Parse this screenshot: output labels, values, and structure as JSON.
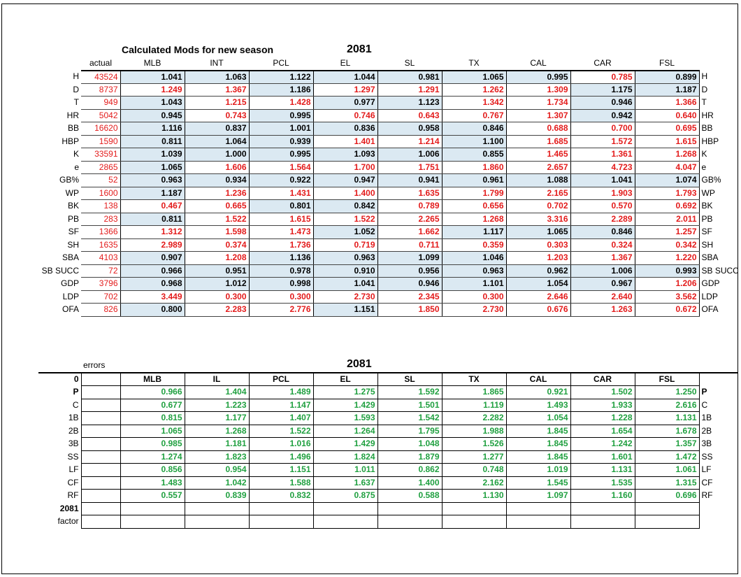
{
  "top": {
    "title": "Calculated Mods for new season",
    "year": "2081",
    "actual_label": "actual",
    "columns": [
      "MLB",
      "INT",
      "PCL",
      "EL",
      "SL",
      "TX",
      "CAL",
      "CAR",
      "FSL"
    ],
    "rows": [
      {
        "label": "H",
        "actual": "43524",
        "values": [
          "1.041",
          "1.063",
          "1.122",
          "1.044",
          "0.981",
          "1.065",
          "0.995",
          "0.785",
          "0.899"
        ],
        "colors": [
          "k",
          "k",
          "k",
          "k",
          "k",
          "k",
          "k",
          "r",
          "k"
        ]
      },
      {
        "label": "D",
        "actual": "8737",
        "values": [
          "1.249",
          "1.367",
          "1.186",
          "1.297",
          "1.291",
          "1.262",
          "1.309",
          "1.175",
          "1.187"
        ],
        "colors": [
          "r",
          "r",
          "k",
          "r",
          "r",
          "r",
          "r",
          "k",
          "k"
        ]
      },
      {
        "label": "T",
        "actual": "949",
        "values": [
          "1.043",
          "1.215",
          "1.428",
          "0.977",
          "1.123",
          "1.342",
          "1.734",
          "0.946",
          "1.366"
        ],
        "colors": [
          "k",
          "r",
          "r",
          "k",
          "k",
          "r",
          "r",
          "k",
          "r"
        ]
      },
      {
        "label": "HR",
        "actual": "5042",
        "values": [
          "0.945",
          "0.743",
          "0.995",
          "0.746",
          "0.643",
          "0.767",
          "1.307",
          "0.942",
          "0.640"
        ],
        "colors": [
          "k",
          "r",
          "k",
          "r",
          "r",
          "r",
          "r",
          "k",
          "r"
        ]
      },
      {
        "label": "BB",
        "actual": "16620",
        "values": [
          "1.116",
          "0.837",
          "1.001",
          "0.836",
          "0.958",
          "0.846",
          "0.688",
          "0.700",
          "0.695"
        ],
        "colors": [
          "k",
          "k",
          "k",
          "k",
          "k",
          "k",
          "r",
          "r",
          "r"
        ]
      },
      {
        "label": "HBP",
        "actual": "1590",
        "values": [
          "0.811",
          "1.064",
          "0.939",
          "1.401",
          "1.214",
          "1.100",
          "1.685",
          "1.572",
          "1.615"
        ],
        "colors": [
          "k",
          "k",
          "k",
          "r",
          "r",
          "k",
          "r",
          "r",
          "r"
        ]
      },
      {
        "label": "K",
        "actual": "33591",
        "values": [
          "1.039",
          "1.000",
          "0.995",
          "1.093",
          "1.006",
          "0.855",
          "1.465",
          "1.361",
          "1.268"
        ],
        "colors": [
          "k",
          "k",
          "k",
          "k",
          "k",
          "k",
          "r",
          "r",
          "r"
        ]
      },
      {
        "label": "e",
        "actual": "2865",
        "values": [
          "1.065",
          "1.606",
          "1.564",
          "1.700",
          "1.751",
          "1.860",
          "2.657",
          "4.723",
          "4.047"
        ],
        "colors": [
          "k",
          "r",
          "r",
          "r",
          "r",
          "r",
          "r",
          "r",
          "r"
        ]
      },
      {
        "label": "GB%",
        "actual": "52",
        "values": [
          "0.963",
          "0.934",
          "0.922",
          "0.947",
          "0.941",
          "0.961",
          "1.088",
          "1.041",
          "1.074"
        ],
        "colors": [
          "k",
          "k",
          "k",
          "k",
          "k",
          "k",
          "k",
          "k",
          "k"
        ]
      },
      {
        "label": "WP",
        "actual": "1600",
        "values": [
          "1.187",
          "1.236",
          "1.431",
          "1.400",
          "1.635",
          "1.799",
          "2.165",
          "1.903",
          "1.793"
        ],
        "colors": [
          "k",
          "r",
          "r",
          "r",
          "r",
          "r",
          "r",
          "r",
          "r"
        ]
      },
      {
        "label": "BK",
        "actual": "138",
        "values": [
          "0.467",
          "0.665",
          "0.801",
          "0.842",
          "0.789",
          "0.656",
          "0.702",
          "0.570",
          "0.692"
        ],
        "colors": [
          "r",
          "r",
          "k",
          "k",
          "r",
          "r",
          "r",
          "r",
          "r"
        ]
      },
      {
        "label": "PB",
        "actual": "283",
        "values": [
          "0.811",
          "1.522",
          "1.615",
          "1.522",
          "2.265",
          "1.268",
          "3.316",
          "2.289",
          "2.011"
        ],
        "colors": [
          "k",
          "r",
          "r",
          "r",
          "r",
          "r",
          "r",
          "r",
          "r"
        ]
      },
      {
        "label": "SF",
        "actual": "1366",
        "values": [
          "1.312",
          "1.598",
          "1.473",
          "1.052",
          "1.662",
          "1.117",
          "1.065",
          "0.846",
          "1.257"
        ],
        "colors": [
          "r",
          "r",
          "r",
          "k",
          "r",
          "k",
          "k",
          "k",
          "r"
        ]
      },
      {
        "label": "SH",
        "actual": "1635",
        "values": [
          "2.989",
          "0.374",
          "1.736",
          "0.719",
          "0.711",
          "0.359",
          "0.303",
          "0.324",
          "0.342"
        ],
        "colors": [
          "r",
          "r",
          "r",
          "r",
          "r",
          "r",
          "r",
          "r",
          "r"
        ]
      },
      {
        "label": "SBA",
        "actual": "4103",
        "values": [
          "0.907",
          "1.208",
          "1.136",
          "0.963",
          "1.099",
          "1.046",
          "1.203",
          "1.367",
          "1.220"
        ],
        "colors": [
          "k",
          "r",
          "k",
          "k",
          "k",
          "k",
          "r",
          "r",
          "r"
        ]
      },
      {
        "label": "SB SUCC",
        "actual": "72",
        "values": [
          "0.966",
          "0.951",
          "0.978",
          "0.910",
          "0.956",
          "0.963",
          "0.962",
          "1.006",
          "0.993"
        ],
        "colors": [
          "k",
          "k",
          "k",
          "k",
          "k",
          "k",
          "k",
          "k",
          "k"
        ]
      },
      {
        "label": "GDP",
        "actual": "3796",
        "values": [
          "0.968",
          "1.012",
          "0.998",
          "1.041",
          "0.946",
          "1.101",
          "1.054",
          "0.967",
          "1.206"
        ],
        "colors": [
          "k",
          "k",
          "k",
          "k",
          "k",
          "k",
          "k",
          "k",
          "r"
        ]
      },
      {
        "label": "LDP",
        "actual": "702",
        "values": [
          "3.449",
          "0.300",
          "0.300",
          "2.730",
          "2.345",
          "0.300",
          "2.646",
          "2.640",
          "3.562"
        ],
        "colors": [
          "r",
          "r",
          "r",
          "r",
          "r",
          "r",
          "r",
          "r",
          "r"
        ]
      },
      {
        "label": "OFA",
        "actual": "826",
        "values": [
          "0.800",
          "2.283",
          "2.776",
          "1.151",
          "1.850",
          "2.730",
          "0.676",
          "1.263",
          "0.672"
        ],
        "colors": [
          "k",
          "r",
          "r",
          "k",
          "r",
          "r",
          "r",
          "r",
          "r"
        ]
      }
    ]
  },
  "bottom": {
    "title": "errors",
    "year": "2081",
    "header_label": "0",
    "columns": [
      "MLB",
      "IL",
      "PCL",
      "EL",
      "SL",
      "TX",
      "CAL",
      "CAR",
      "FSL"
    ],
    "rows": [
      {
        "label": "P",
        "right": "P",
        "values": [
          "0.966",
          "1.404",
          "1.489",
          "1.275",
          "1.592",
          "1.865",
          "0.921",
          "1.502",
          "1.250"
        ]
      },
      {
        "label": "C",
        "right": "C",
        "values": [
          "0.677",
          "1.223",
          "1.147",
          "1.429",
          "1.501",
          "1.119",
          "1.493",
          "1.933",
          "2.616"
        ]
      },
      {
        "label": "1B",
        "right": "1B",
        "values": [
          "0.815",
          "1.177",
          "1.407",
          "1.593",
          "1.542",
          "2.282",
          "1.054",
          "1.228",
          "1.131"
        ]
      },
      {
        "label": "2B",
        "right": "2B",
        "values": [
          "1.065",
          "1.268",
          "1.522",
          "1.264",
          "1.795",
          "1.988",
          "1.845",
          "1.654",
          "1.678"
        ]
      },
      {
        "label": "3B",
        "right": "3B",
        "values": [
          "0.985",
          "1.181",
          "1.016",
          "1.429",
          "1.048",
          "1.526",
          "1.845",
          "1.242",
          "1.357"
        ]
      },
      {
        "label": "SS",
        "right": "SS",
        "values": [
          "1.274",
          "1.823",
          "1.496",
          "1.824",
          "1.879",
          "1.277",
          "1.845",
          "1.601",
          "1.472"
        ]
      },
      {
        "label": "LF",
        "right": "LF",
        "values": [
          "0.856",
          "0.954",
          "1.151",
          "1.011",
          "0.862",
          "0.748",
          "1.019",
          "1.131",
          "1.061"
        ]
      },
      {
        "label": "CF",
        "right": "CF",
        "values": [
          "1.483",
          "1.042",
          "1.588",
          "1.637",
          "1.400",
          "2.162",
          "1.545",
          "1.535",
          "1.315"
        ]
      },
      {
        "label": "RF",
        "right": "RF",
        "values": [
          "0.557",
          "0.839",
          "0.832",
          "0.875",
          "0.588",
          "1.130",
          "1.097",
          "1.160",
          "0.696"
        ]
      }
    ],
    "footer_labels": [
      "2081",
      "factor"
    ]
  }
}
